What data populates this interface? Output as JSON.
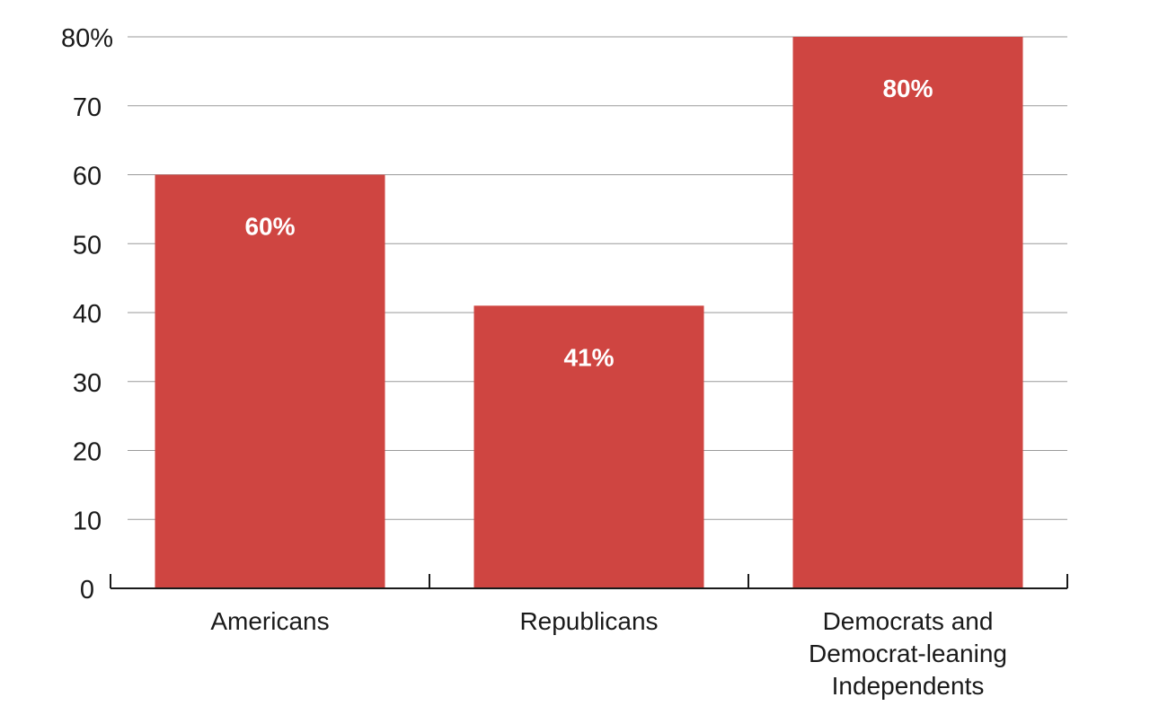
{
  "chart_data": {
    "type": "bar",
    "categories": [
      [
        "Americans"
      ],
      [
        "Republicans"
      ],
      [
        "Democrats and",
        "Democrat-leaning",
        "Independents"
      ]
    ],
    "values": [
      60,
      41,
      80
    ],
    "value_labels": [
      "60%",
      "41%",
      "80%"
    ],
    "ylim": [
      0,
      80
    ],
    "yticks": [
      0,
      10,
      20,
      30,
      40,
      50,
      60,
      70,
      80
    ],
    "ytick_labels": [
      "0",
      "10",
      "20",
      "30",
      "40",
      "50",
      "60",
      "70",
      "80%"
    ],
    "grid": true,
    "bar_color": "#cf4541",
    "title": "",
    "xlabel": "",
    "ylabel": ""
  }
}
